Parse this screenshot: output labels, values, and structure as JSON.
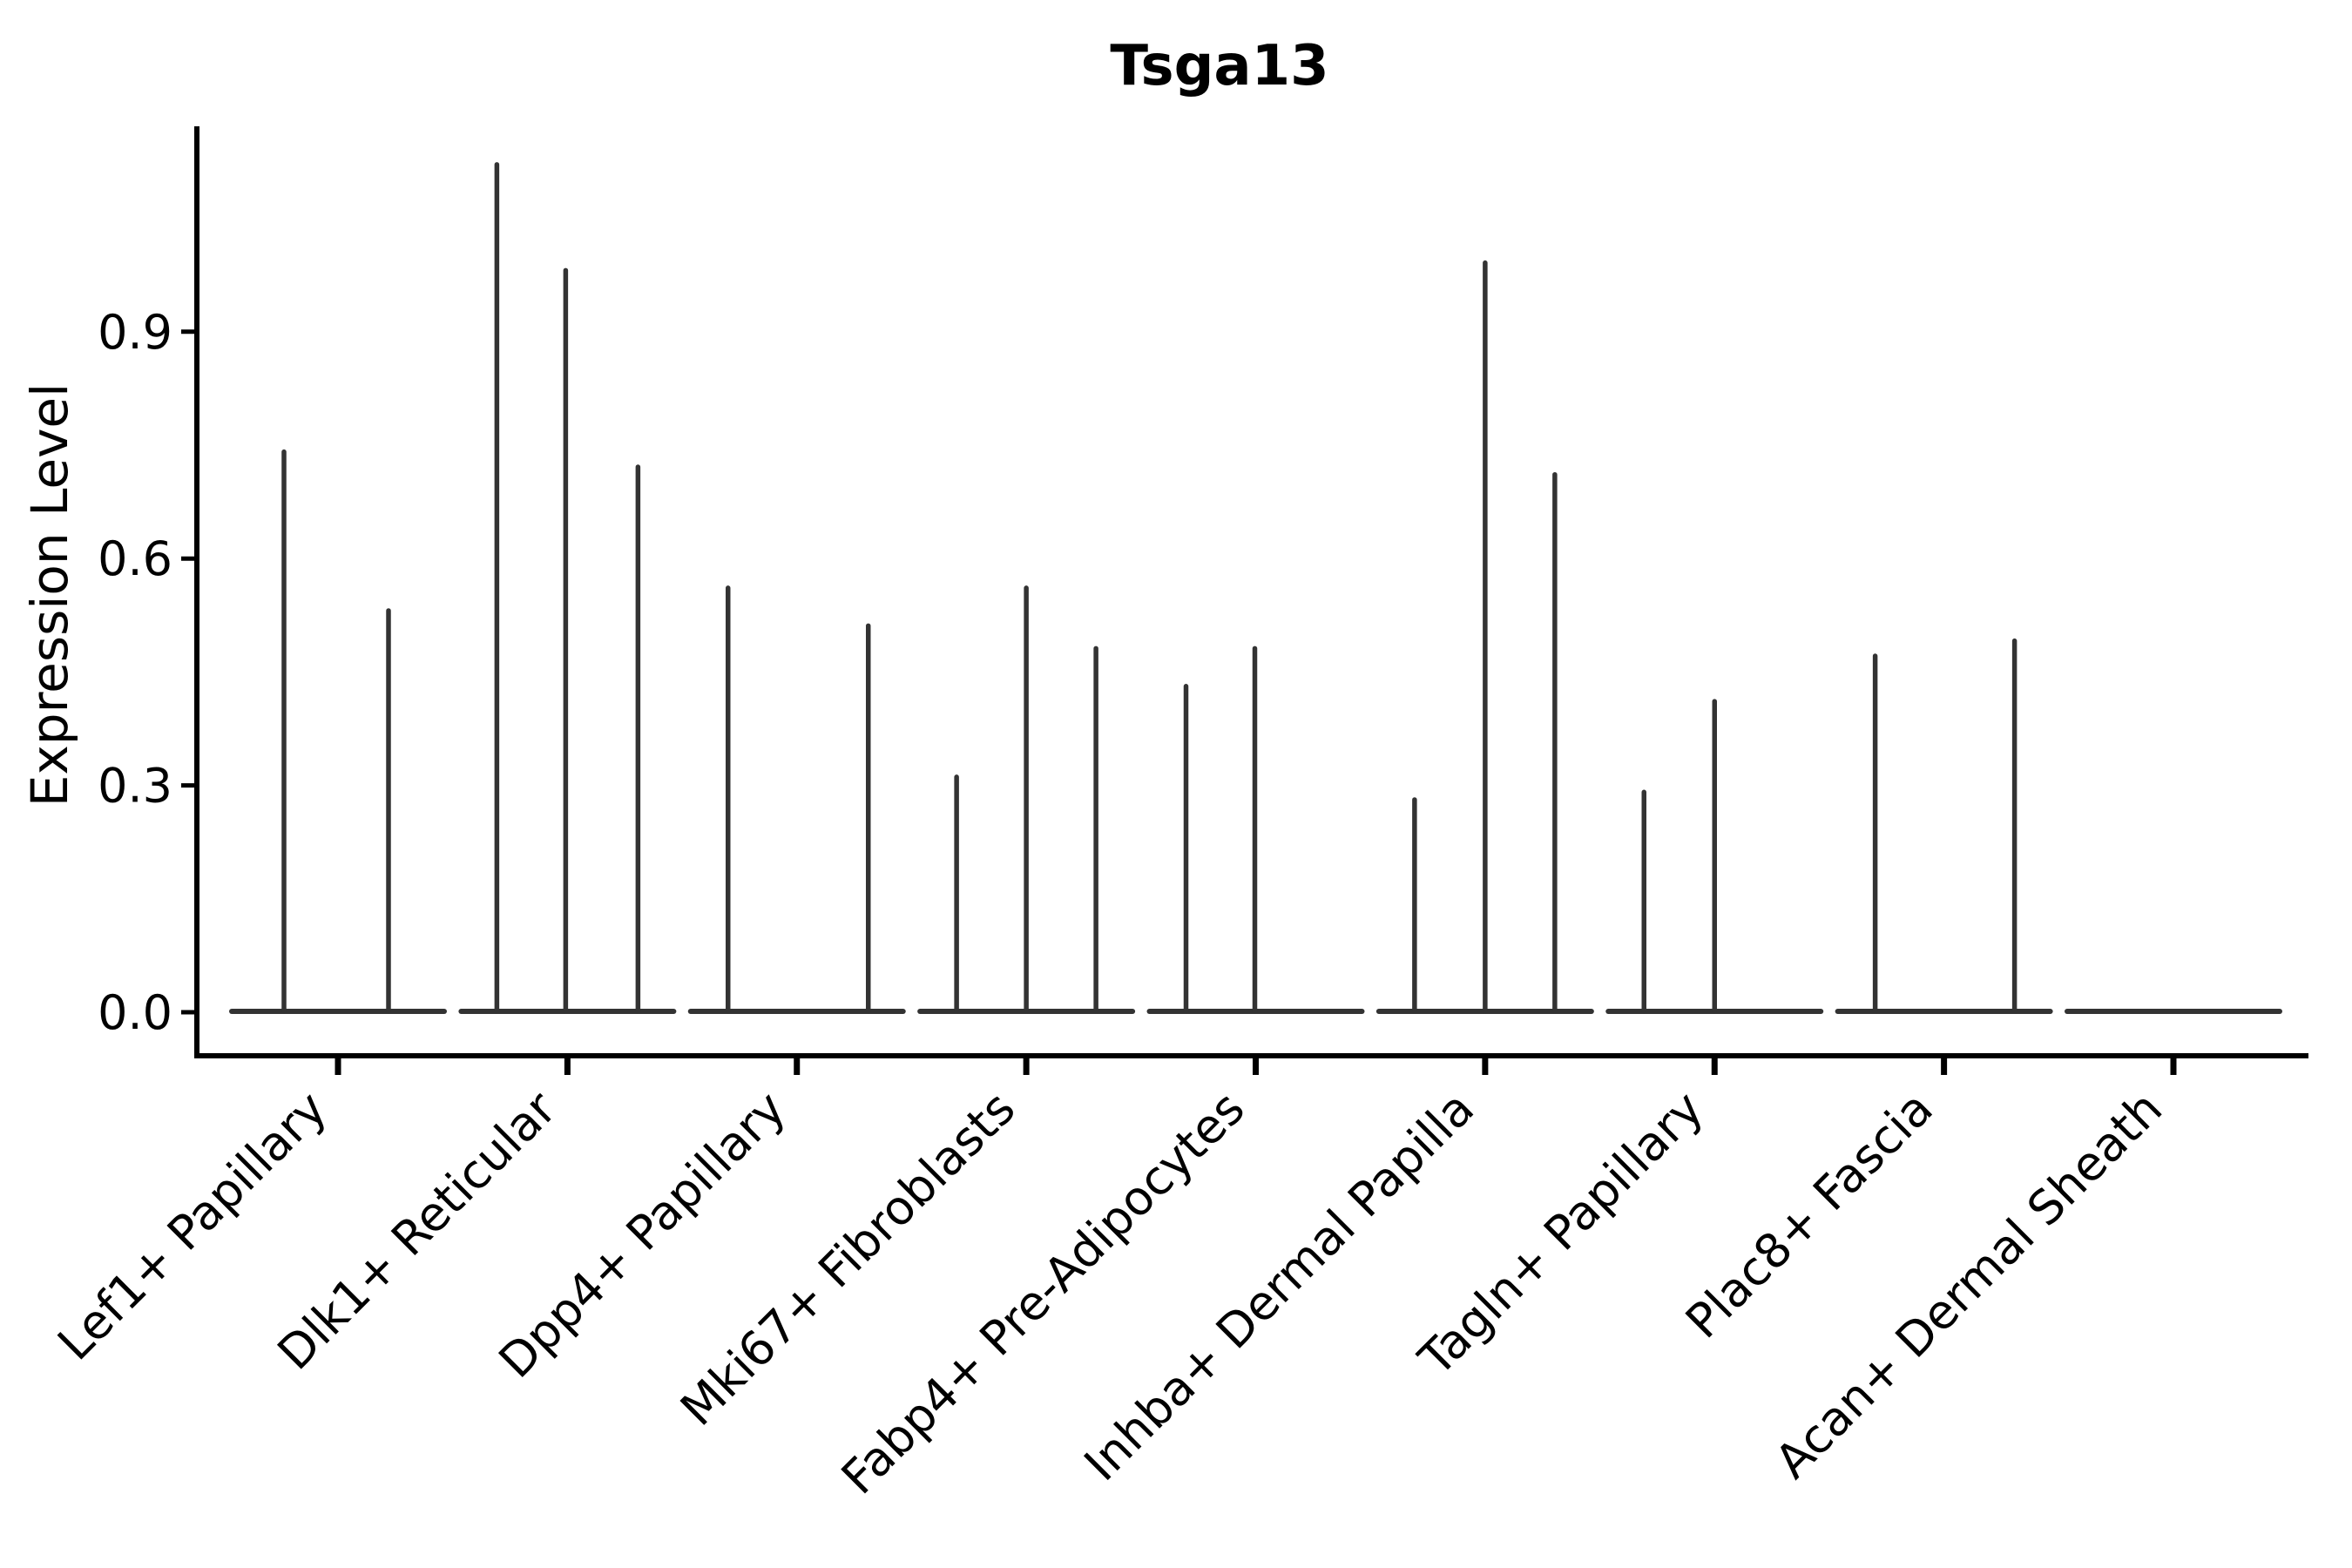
{
  "title": "Tsga13",
  "y_axis": {
    "label": "Expression Level",
    "tick_labels": [
      "0.0",
      "0.3",
      "0.6",
      "0.9"
    ],
    "tick_values": [
      0.0,
      0.3,
      0.6,
      0.9
    ]
  },
  "colors": {
    "violin": "#333333",
    "axis": "#000000",
    "text": "#000000",
    "background": "#ffffff"
  },
  "chart_data": {
    "type": "violin",
    "title": "Tsga13",
    "xlabel": "",
    "ylabel": "Expression Level",
    "ylim": [
      0,
      1.17
    ],
    "yticks": [
      0.0,
      0.3,
      0.6,
      0.9
    ],
    "grid": false,
    "legend": "none",
    "x_label_rotation_deg": 45,
    "description": "Violin plot of Tsga13 expression; most cells at 0 giving flat baselines with thin density spikes up to each violin's max expression value.",
    "categories": [
      "Lef1+ Papillary",
      "Dlk1+ Reticular",
      "Dpp4+ Papillary",
      "Mki67+ Fibroblasts",
      "Fabp4+ Pre-Adipocytes",
      "Inhba+ Dermal Papilla",
      "Tagln+ Papillary",
      "Plac8+ Fascia",
      "Acan+ Dermal Sheath"
    ],
    "groups": [
      {
        "label": "Lef1+ Papillary",
        "violins": [
          {
            "offset": -62,
            "max": 0.74
          },
          {
            "offset": 58,
            "max": 0.53
          }
        ]
      },
      {
        "label": "Dlk1+ Reticular",
        "violins": [
          {
            "offset": -81,
            "max": 1.12
          },
          {
            "offset": -2,
            "max": 0.98
          },
          {
            "offset": 81,
            "max": 0.72
          }
        ]
      },
      {
        "label": "Dpp4+ Papillary",
        "violins": [
          {
            "offset": -79,
            "max": 0.56
          },
          {
            "offset": 82,
            "max": 0.51
          }
        ]
      },
      {
        "label": "Mki67+ Fibroblasts",
        "violins": [
          {
            "offset": -80,
            "max": 0.31
          },
          {
            "offset": 0,
            "max": 0.56
          },
          {
            "offset": 80,
            "max": 0.48
          }
        ]
      },
      {
        "label": "Fabp4+ Pre-Adipocytes",
        "violins": [
          {
            "offset": -80,
            "max": 0.43
          },
          {
            "offset": -1,
            "max": 0.48
          }
        ]
      },
      {
        "label": "Inhba+ Dermal Papilla",
        "violins": [
          {
            "offset": -81,
            "max": 0.28
          },
          {
            "offset": 0,
            "max": 0.99
          },
          {
            "offset": 80,
            "max": 0.71
          }
        ]
      },
      {
        "label": "Tagln+ Papillary",
        "violins": [
          {
            "offset": -81,
            "max": 0.29
          },
          {
            "offset": 0,
            "max": 0.41
          }
        ]
      },
      {
        "label": "Plac8+ Fascia",
        "violins": [
          {
            "offset": -79,
            "max": 0.47
          },
          {
            "offset": 81,
            "max": 0.49
          }
        ]
      },
      {
        "label": "Acan+ Dermal Sheath",
        "violins": []
      }
    ]
  }
}
